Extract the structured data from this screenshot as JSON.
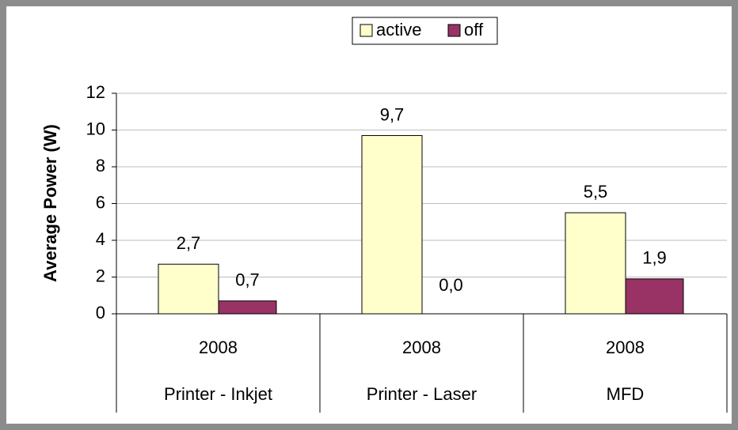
{
  "chart_data": {
    "type": "bar",
    "y_label": "Average Power (W)",
    "categories": [
      "2008",
      "2008",
      "2008"
    ],
    "groups": [
      "Printer - Inkjet",
      "Printer - Laser",
      "MFD"
    ],
    "series": [
      {
        "name": "active",
        "color": "#ffffcc",
        "values": [
          2.7,
          9.7,
          5.5
        ],
        "value_labels": [
          "2,7",
          "9,7",
          "5,5"
        ]
      },
      {
        "name": "off",
        "color": "#993366",
        "values": [
          0.7,
          0.0,
          1.9
        ],
        "value_labels": [
          "0,7",
          "0,0",
          "1,9"
        ]
      }
    ],
    "ylim": [
      0,
      12
    ],
    "yticks": [
      0,
      2,
      4,
      6,
      8,
      10,
      12
    ],
    "grid": true,
    "legend": "top"
  }
}
